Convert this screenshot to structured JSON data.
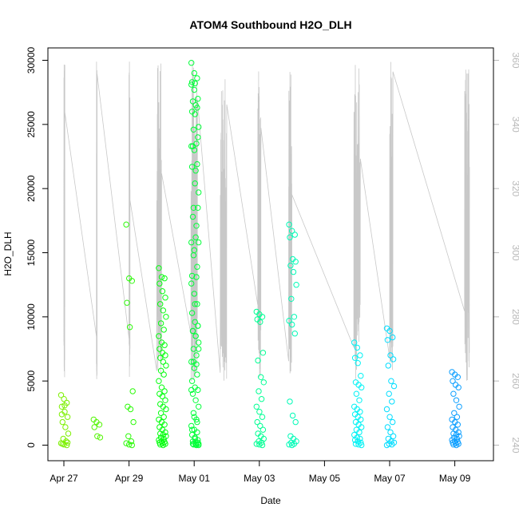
{
  "chart_data": {
    "type": "scatter",
    "title": "ATOM4 Southbound H2O_DLH",
    "xlabel": "Date",
    "ylabel": "H2O_DLH",
    "x_ticks": [
      "Apr 27",
      "Apr 29",
      "May 01",
      "May 03",
      "May 05",
      "May 07",
      "May 09"
    ],
    "y_ticks": [
      "0",
      "5000",
      "10000",
      "15000",
      "20000",
      "25000",
      "30000"
    ],
    "y2_ticks": [
      "240",
      "260",
      "280",
      "300",
      "320",
      "340",
      "360"
    ],
    "ylim": [
      0,
      30000
    ],
    "y2lim": [
      240,
      360
    ],
    "grid": false,
    "colors": {
      "secondary_line": "#c8c8c8",
      "right_axis": "#b8b8b8",
      "points_gradient": [
        "#7cf000",
        "#00ff10",
        "#00ffa0",
        "#00f0ff",
        "#1090ff"
      ]
    },
    "flights": [
      {
        "date": "2017-04-27",
        "h2o": [
          3900,
          3600,
          3300,
          3000,
          2600,
          2200,
          1800,
          1400,
          900,
          500,
          300,
          150,
          50,
          0,
          2400,
          3100,
          200,
          100
        ]
      },
      {
        "date": "2017-04-28",
        "h2o": [
          2000,
          1800,
          1600,
          1400,
          700,
          600
        ]
      },
      {
        "date": "2017-04-29",
        "h2o": [
          17200,
          13000,
          12800,
          11100,
          9200,
          4200,
          3000,
          2800,
          1800,
          700,
          300,
          150,
          50,
          0
        ]
      },
      {
        "date": "2017-04-30",
        "h2o": [
          13800,
          13100,
          13000,
          12600,
          12000,
          11500,
          11000,
          10500,
          10000,
          9500,
          9000,
          8500,
          8000,
          7800,
          7500,
          7200,
          7000,
          6800,
          6500,
          6200,
          5800,
          5500,
          5000,
          4500,
          4200,
          4000,
          3800,
          3500,
          3200,
          3000,
          2800,
          2500,
          2200,
          2000,
          1800,
          1600,
          1400,
          1200,
          1000,
          900,
          800,
          700,
          600,
          500,
          400,
          300,
          250,
          200,
          150,
          100,
          50,
          0
        ]
      },
      {
        "date": "2017-05-01",
        "h2o": [
          28100,
          27700,
          26300,
          26000,
          25800,
          24000,
          23300,
          21400,
          19700,
          18500,
          17100,
          15800,
          15200,
          13900,
          13200,
          11000,
          9300,
          8900,
          8500,
          7500,
          6500,
          6300,
          4300,
          2200,
          1800,
          1200,
          500,
          200,
          100,
          50,
          0
        ]
      },
      {
        "date": "2017-05-01",
        "h2o": [
          29800,
          29000,
          28600,
          28300,
          28200,
          27000,
          26800,
          26500,
          24800,
          24600,
          23500,
          23300,
          23000,
          21900,
          21700,
          20400,
          18500,
          17800,
          16200,
          15800,
          14800,
          13100,
          12600,
          11800,
          11000,
          10300,
          9600,
          9300,
          8900,
          8500,
          8000,
          7500,
          7000,
          6500,
          6000,
          5500,
          5000,
          4500,
          4300,
          4000,
          3500,
          3000,
          2500,
          2000,
          1500,
          1200,
          1000,
          800,
          600,
          400,
          300,
          200,
          100,
          50,
          0
        ]
      },
      {
        "date": "2017-05-03",
        "h2o": [
          10400,
          10200,
          10000,
          9800,
          9600,
          7200,
          6600,
          5300,
          4900,
          4200,
          3600,
          3000,
          2600,
          2200,
          1800,
          1500,
          1200,
          900,
          700,
          500,
          300,
          200,
          100,
          50,
          0
        ]
      },
      {
        "date": "2017-05-04",
        "h2o": [
          17200,
          16700,
          16400,
          16200,
          14500,
          14300,
          14000,
          13500,
          12500,
          11400,
          10000,
          9700,
          9400,
          8700,
          3400,
          2300,
          1800,
          700,
          500,
          300,
          200,
          100,
          50,
          0
        ]
      },
      {
        "date": "2017-05-06",
        "h2o": [
          8000,
          7600,
          7000,
          6800,
          6400,
          5400,
          4900,
          4700,
          4500,
          4000,
          3500,
          3000,
          2800,
          2600,
          2400,
          2200,
          2000,
          1800,
          1600,
          1400,
          1200,
          1000,
          800,
          600,
          500,
          400,
          300,
          200,
          100,
          50,
          0
        ]
      },
      {
        "date": "2017-05-07",
        "h2o": [
          9100,
          8900,
          8400,
          8200,
          7000,
          6700,
          6200,
          5000,
          4600,
          4000,
          3400,
          2800,
          2200,
          1800,
          1400,
          1000,
          700,
          500,
          300,
          200,
          100,
          50,
          0
        ]
      },
      {
        "date": "2017-05-09",
        "h2o": [
          5700,
          5500,
          5300,
          5000,
          4700,
          4500,
          4000,
          3500,
          3000,
          2500,
          2200,
          2000,
          1800,
          1600,
          1400,
          1200,
          1000,
          900,
          800,
          700,
          600,
          500,
          400,
          300,
          250,
          200,
          150,
          100,
          50,
          0
        ]
      }
    ]
  }
}
